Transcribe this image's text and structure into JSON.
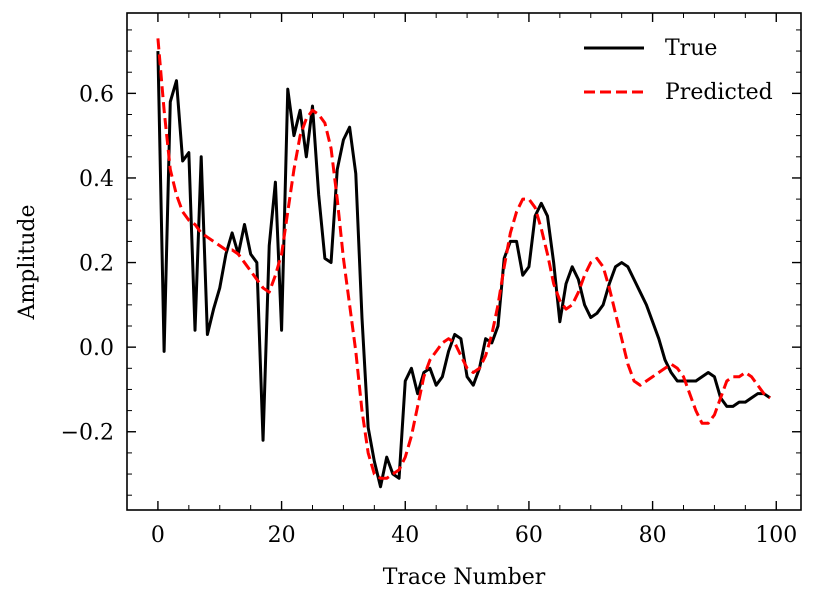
{
  "chart_data": {
    "type": "line",
    "xlabel": "Trace Number",
    "ylabel": "Amplitude",
    "xlim": [
      -5,
      104
    ],
    "ylim": [
      -0.385,
      0.79
    ],
    "xticks": [
      0,
      20,
      40,
      60,
      80,
      100
    ],
    "xtick_labels": [
      "0",
      "20",
      "40",
      "60",
      "80",
      "100"
    ],
    "yticks": [
      -0.2,
      0.0,
      0.2,
      0.4,
      0.6
    ],
    "ytick_labels": [
      "−0.2",
      "0.0",
      "0.2",
      "0.4",
      "0.6"
    ],
    "x_minor_step": 5,
    "y_minor_step": 0.05,
    "grid": false,
    "legend_position": "top-right",
    "series": [
      {
        "name": "True",
        "color": "#000000",
        "style": "solid",
        "x": [
          0,
          1,
          2,
          3,
          4,
          5,
          6,
          7,
          8,
          9,
          10,
          11,
          12,
          13,
          14,
          15,
          16,
          17,
          18,
          19,
          20,
          21,
          22,
          23,
          24,
          25,
          26,
          27,
          28,
          29,
          30,
          31,
          32,
          33,
          34,
          35,
          36,
          37,
          38,
          39,
          40,
          41,
          42,
          43,
          44,
          45,
          46,
          47,
          48,
          49,
          50,
          51,
          52,
          53,
          54,
          55,
          56,
          57,
          58,
          59,
          60,
          61,
          62,
          63,
          64,
          65,
          66,
          67,
          68,
          69,
          70,
          71,
          72,
          73,
          74,
          75,
          76,
          77,
          78,
          79,
          80,
          81,
          82,
          83,
          84,
          85,
          86,
          87,
          88,
          89,
          90,
          91,
          92,
          93,
          94,
          95,
          96,
          97,
          98,
          99
        ],
        "y": [
          0.7,
          -0.01,
          0.58,
          0.63,
          0.44,
          0.46,
          0.04,
          0.45,
          0.03,
          0.09,
          0.14,
          0.22,
          0.27,
          0.22,
          0.29,
          0.22,
          0.2,
          -0.22,
          0.24,
          0.39,
          0.04,
          0.61,
          0.5,
          0.56,
          0.45,
          0.57,
          0.36,
          0.21,
          0.2,
          0.42,
          0.49,
          0.52,
          0.41,
          0.07,
          -0.19,
          -0.27,
          -0.33,
          -0.26,
          -0.3,
          -0.31,
          -0.08,
          -0.05,
          -0.11,
          -0.06,
          -0.05,
          -0.09,
          -0.07,
          -0.01,
          0.03,
          0.02,
          -0.07,
          -0.09,
          -0.05,
          0.02,
          0.01,
          0.05,
          0.21,
          0.25,
          0.25,
          0.17,
          0.19,
          0.31,
          0.34,
          0.31,
          0.2,
          0.06,
          0.15,
          0.19,
          0.16,
          0.1,
          0.07,
          0.08,
          0.1,
          0.15,
          0.19,
          0.2,
          0.19,
          0.16,
          0.13,
          0.1,
          0.06,
          0.02,
          -0.03,
          -0.06,
          -0.08,
          -0.08,
          -0.08,
          -0.08,
          -0.07,
          -0.06,
          -0.07,
          -0.12,
          -0.14,
          -0.14,
          -0.13,
          -0.13,
          -0.12,
          -0.11,
          -0.11,
          -0.12
        ]
      },
      {
        "name": "Predicted",
        "color": "#ff0000",
        "style": "dashed",
        "x": [
          0,
          1,
          2,
          3,
          4,
          5,
          6,
          7,
          8,
          9,
          10,
          11,
          12,
          13,
          14,
          15,
          16,
          17,
          18,
          19,
          20,
          21,
          22,
          23,
          24,
          25,
          26,
          27,
          28,
          29,
          30,
          31,
          32,
          33,
          34,
          35,
          36,
          37,
          38,
          39,
          40,
          41,
          42,
          43,
          44,
          45,
          46,
          47,
          48,
          49,
          50,
          51,
          52,
          53,
          54,
          55,
          56,
          57,
          58,
          59,
          60,
          61,
          62,
          63,
          64,
          65,
          66,
          67,
          68,
          69,
          70,
          71,
          72,
          73,
          74,
          75,
          76,
          77,
          78,
          79,
          80,
          81,
          82,
          83,
          84,
          85,
          86,
          87,
          88,
          89,
          90,
          91,
          92,
          93,
          94,
          95,
          96,
          97,
          98,
          99
        ],
        "y": [
          0.73,
          0.56,
          0.42,
          0.36,
          0.32,
          0.3,
          0.29,
          0.27,
          0.26,
          0.25,
          0.24,
          0.23,
          0.23,
          0.22,
          0.2,
          0.18,
          0.16,
          0.14,
          0.13,
          0.17,
          0.22,
          0.32,
          0.42,
          0.5,
          0.54,
          0.56,
          0.55,
          0.53,
          0.47,
          0.35,
          0.21,
          0.1,
          -0.01,
          -0.15,
          -0.25,
          -0.3,
          -0.31,
          -0.31,
          -0.3,
          -0.29,
          -0.26,
          -0.21,
          -0.14,
          -0.07,
          -0.03,
          -0.01,
          0.01,
          0.02,
          0.01,
          -0.02,
          -0.05,
          -0.06,
          -0.05,
          -0.02,
          0.03,
          0.1,
          0.19,
          0.27,
          0.32,
          0.35,
          0.35,
          0.33,
          0.28,
          0.22,
          0.15,
          0.11,
          0.09,
          0.1,
          0.13,
          0.17,
          0.2,
          0.21,
          0.19,
          0.14,
          0.08,
          0.02,
          -0.04,
          -0.08,
          -0.09,
          -0.08,
          -0.07,
          -0.06,
          -0.05,
          -0.04,
          -0.05,
          -0.07,
          -0.11,
          -0.15,
          -0.18,
          -0.18,
          -0.16,
          -0.12,
          -0.08,
          -0.07,
          -0.07,
          -0.06,
          -0.07,
          -0.09,
          -0.11,
          -0.12
        ]
      }
    ]
  }
}
